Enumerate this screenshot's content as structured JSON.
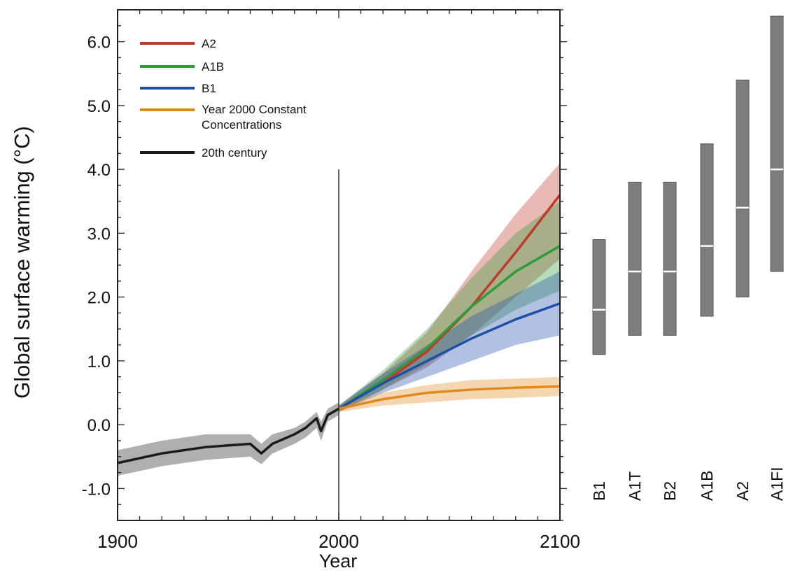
{
  "chart_data": {
    "type": "line",
    "xlabel": "Year",
    "ylabel": "Global surface warming (°C)",
    "xlim": [
      1900,
      2100
    ],
    "ylim": [
      -1.5,
      6.5
    ],
    "x_ticks": [
      "1900",
      "2000",
      "2100"
    ],
    "y_ticks": [
      "-1.0",
      "0.0",
      "1.0",
      "2.0",
      "3.0",
      "4.0",
      "5.0",
      "6.0"
    ],
    "grid": false,
    "legend_position": "top-left",
    "annotations": [
      {
        "type": "vertical-line",
        "x": 2000,
        "y_from": -1.5,
        "y_to": 4.0
      }
    ],
    "series": [
      {
        "name": "A2",
        "color": "#c03828",
        "x": [
          2000,
          2020,
          2040,
          2060,
          2080,
          2100
        ],
        "values": [
          0.25,
          0.65,
          1.15,
          1.85,
          2.7,
          3.6
        ],
        "band_low": [
          0.2,
          0.55,
          0.9,
          1.4,
          2.0,
          2.6
        ],
        "band_high": [
          0.3,
          0.8,
          1.45,
          2.4,
          3.3,
          4.1
        ]
      },
      {
        "name": "A1B",
        "color": "#2e9a3a",
        "x": [
          2000,
          2020,
          2040,
          2060,
          2080,
          2100
        ],
        "values": [
          0.25,
          0.7,
          1.2,
          1.85,
          2.4,
          2.8
        ],
        "band_low": [
          0.2,
          0.55,
          0.95,
          1.4,
          1.8,
          2.1
        ],
        "band_high": [
          0.3,
          0.85,
          1.5,
          2.3,
          3.0,
          3.5
        ]
      },
      {
        "name": "B1",
        "color": "#1f4ea8",
        "x": [
          2000,
          2020,
          2040,
          2060,
          2080,
          2100
        ],
        "values": [
          0.25,
          0.65,
          1.0,
          1.35,
          1.65,
          1.9
        ],
        "band_low": [
          0.2,
          0.5,
          0.75,
          1.0,
          1.25,
          1.4
        ],
        "band_high": [
          0.3,
          0.8,
          1.25,
          1.7,
          2.05,
          2.4
        ]
      },
      {
        "name": "Year 2000 Constant Concentrations",
        "color": "#e08a1e",
        "x": [
          2000,
          2020,
          2040,
          2060,
          2080,
          2100
        ],
        "values": [
          0.25,
          0.4,
          0.5,
          0.55,
          0.58,
          0.6
        ],
        "band_low": [
          0.2,
          0.3,
          0.35,
          0.4,
          0.42,
          0.45
        ],
        "band_high": [
          0.3,
          0.5,
          0.62,
          0.7,
          0.72,
          0.75
        ]
      },
      {
        "name": "20th century",
        "color": "#1a1a1a",
        "x": [
          1900,
          1920,
          1940,
          1960,
          1965,
          1970,
          1980,
          1985,
          1990,
          1992,
          1995,
          2000
        ],
        "values": [
          -0.6,
          -0.45,
          -0.35,
          -0.3,
          -0.45,
          -0.3,
          -0.15,
          -0.05,
          0.1,
          -0.1,
          0.15,
          0.25
        ],
        "band_low": [
          -0.8,
          -0.65,
          -0.55,
          -0.5,
          -0.62,
          -0.45,
          -0.3,
          -0.2,
          -0.05,
          -0.25,
          0.05,
          0.15
        ],
        "band_high": [
          -0.4,
          -0.25,
          -0.15,
          -0.15,
          -0.3,
          -0.15,
          -0.05,
          0.05,
          0.2,
          0.05,
          0.25,
          0.35
        ]
      }
    ],
    "range_bars": {
      "categories": [
        "B1",
        "A1T",
        "B2",
        "A1B",
        "A2",
        "A1FI"
      ],
      "low": [
        1.1,
        1.4,
        1.4,
        1.7,
        2.0,
        2.4
      ],
      "high": [
        2.9,
        3.8,
        3.8,
        4.4,
        5.4,
        6.4
      ],
      "best": [
        1.8,
        2.4,
        2.4,
        2.8,
        3.4,
        4.0
      ],
      "color": "#7d7d7d"
    }
  }
}
